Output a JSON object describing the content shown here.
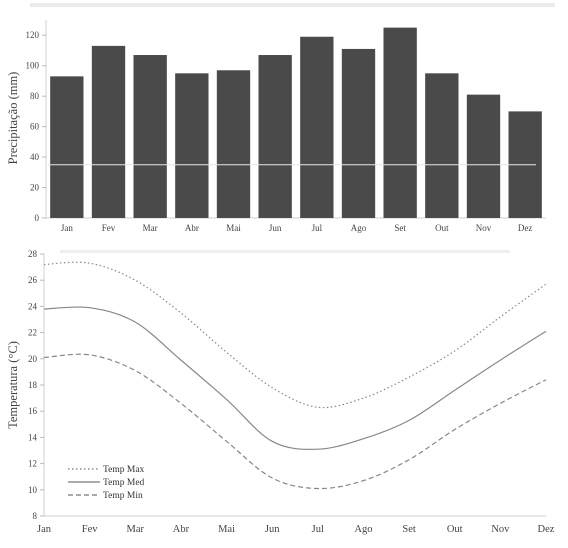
{
  "chart_data": [
    {
      "type": "bar",
      "categories": [
        "Jan",
        "Fev",
        "Mar",
        "Abr",
        "Mai",
        "Jun",
        "Jul",
        "Ago",
        "Set",
        "Out",
        "Nov",
        "Dez"
      ],
      "values": [
        93,
        113,
        107,
        95,
        97,
        107,
        119,
        111,
        125,
        95,
        81,
        70
      ],
      "reference_line": 35,
      "ylabel": "Precipitação (mm)",
      "ylim": [
        0,
        130
      ],
      "yticks": [
        "0",
        "20",
        "40",
        "60",
        "80",
        "100",
        "120"
      ],
      "xticks": [
        "Jan",
        "Fev",
        "Mar",
        "Abr",
        "Mai",
        "Jun",
        "Jul",
        "Ago",
        "Set",
        "Out",
        "Nov",
        "Dez"
      ],
      "colors": {
        "bar": "#4a4a4a",
        "reference_line": "#e6e6e6"
      }
    },
    {
      "type": "line",
      "categories": [
        "Jan",
        "Fev",
        "Mar",
        "Abr",
        "Mai",
        "Jun",
        "Jul",
        "Ago",
        "Set",
        "Out",
        "Nov",
        "Dez"
      ],
      "series": [
        {
          "name": "Temp Max",
          "style": "dotted",
          "values": [
            27.2,
            27.3,
            26.0,
            23.5,
            20.5,
            17.8,
            16.3,
            17.0,
            18.6,
            20.6,
            23.2,
            25.7
          ]
        },
        {
          "name": "Temp Med",
          "style": "solid",
          "values": [
            23.8,
            23.9,
            22.8,
            19.9,
            16.9,
            13.7,
            13.1,
            13.9,
            15.3,
            17.6,
            19.9,
            22.1
          ]
        },
        {
          "name": "Temp Min",
          "style": "dashed",
          "values": [
            20.1,
            20.3,
            19.1,
            16.6,
            13.7,
            10.9,
            10.1,
            10.7,
            12.3,
            14.6,
            16.6,
            18.4
          ]
        }
      ],
      "ylabel": "Temperatura (°C)",
      "ylim": [
        8,
        28
      ],
      "yticks": [
        "8",
        "10",
        "12",
        "14",
        "16",
        "18",
        "20",
        "22",
        "24",
        "26",
        "28"
      ],
      "xticks": [
        "Jan",
        "Fev",
        "Mar",
        "Abr",
        "Mai",
        "Jun",
        "Jul",
        "Ago",
        "Set",
        "Out",
        "Nov",
        "Dez"
      ],
      "legend_placement": "lower-left",
      "colors": {
        "lines": "#888888"
      }
    }
  ]
}
